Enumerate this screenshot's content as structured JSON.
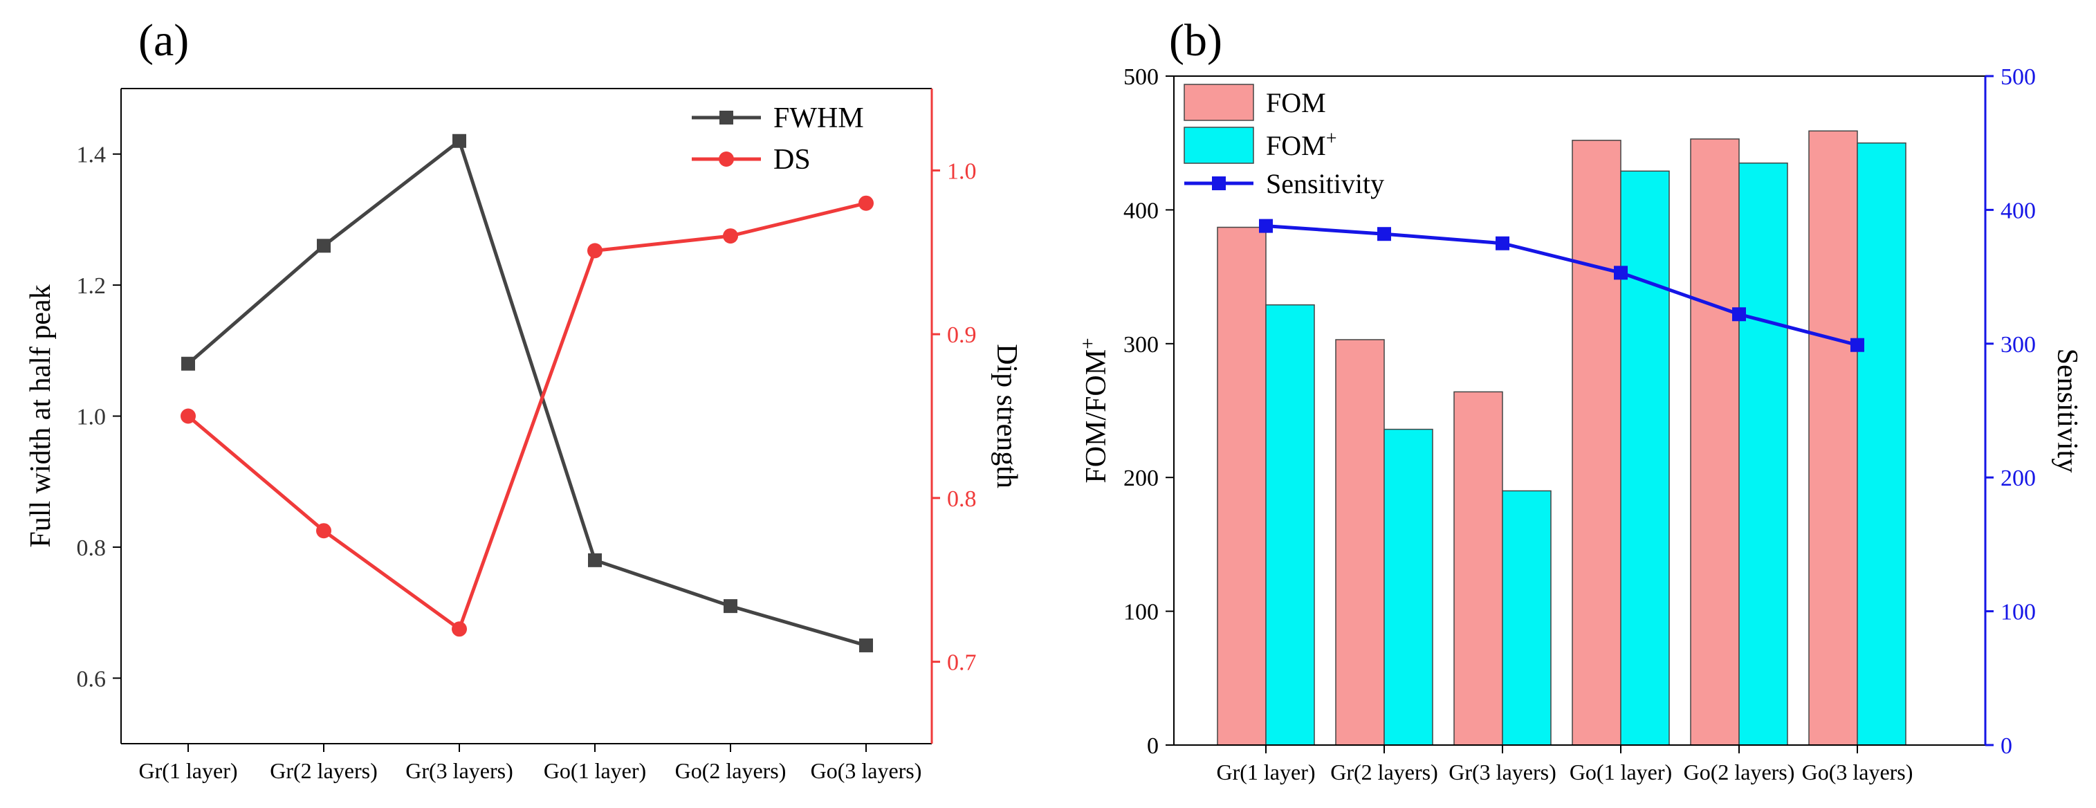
{
  "chart_data": [
    {
      "panel_label": "(a)",
      "type": "line",
      "categories": [
        "Gr(1 layer)",
        "Gr(2 layers)",
        "Gr(3 layers)",
        "Go(1 layer)",
        "Go(2 layers)",
        "Go(3 layers)"
      ],
      "series": [
        {
          "name": "FWHM",
          "axis": "left",
          "marker": "square",
          "color": "#444444",
          "values": [
            1.08,
            1.26,
            1.42,
            0.78,
            0.71,
            0.65
          ]
        },
        {
          "name": "DS",
          "axis": "right",
          "marker": "circle",
          "color": "#f03a3a",
          "values": [
            0.85,
            0.78,
            0.72,
            0.951,
            0.96,
            0.98
          ]
        }
      ],
      "ylabel": "Full width at half peak",
      "ylim": [
        0.5,
        1.5
      ],
      "yticks": [
        "0.6",
        "0.8",
        "1.0",
        "1.2",
        "1.4"
      ],
      "y2label": "Dip strength",
      "y2lim": [
        0.65,
        1.05
      ],
      "y2ticks": [
        "0.7",
        "0.8",
        "0.9",
        "1.0"
      ],
      "legend": "top-right",
      "grid": false
    },
    {
      "panel_label": "(b)",
      "type": "bar",
      "categories": [
        "Gr(1 layer)",
        "Gr(2 layers)",
        "Gr(3 layers)",
        "Go(1 layer)",
        "Go(2 layers)",
        "Go(3 layers)"
      ],
      "series": [
        {
          "name": "FOM",
          "sup": "",
          "kind": "bar",
          "axis": "left",
          "color": "#f89a99",
          "values": [
            387,
            303,
            264,
            452,
            453,
            459
          ]
        },
        {
          "name": "FOM",
          "sup": "+",
          "kind": "bar",
          "axis": "left",
          "color": "#00f5f5",
          "values": [
            329,
            236,
            190,
            429,
            435,
            450
          ]
        },
        {
          "name": "Sensitivity",
          "sup": "",
          "kind": "line",
          "axis": "right",
          "marker": "square",
          "color": "#1515e6",
          "values": [
            388,
            382,
            375,
            353,
            322,
            299
          ]
        }
      ],
      "ylabel": "FOM/FOM",
      "ylabel_sup": "+",
      "ylim": [
        0,
        500
      ],
      "yticks": [
        "0",
        "100",
        "200",
        "300",
        "400",
        "500"
      ],
      "y2label": "Sensitivity",
      "y2lim": [
        0,
        500
      ],
      "y2ticks": [
        "0",
        "100",
        "200",
        "300",
        "400",
        "500"
      ],
      "legend": "top-left",
      "grid": false
    }
  ]
}
